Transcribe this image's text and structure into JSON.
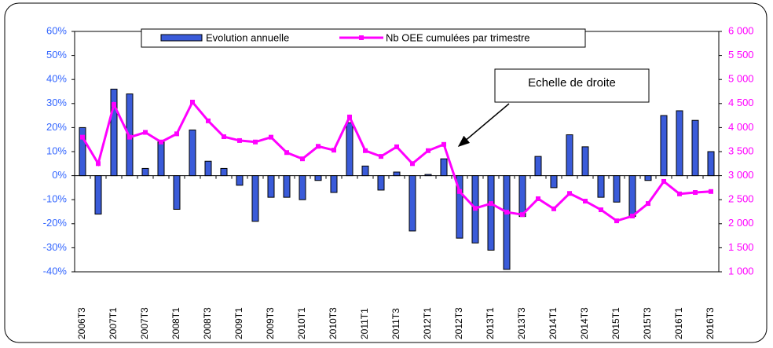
{
  "chart_data": {
    "type": "bar",
    "categories": [
      "2006T3",
      null,
      "2007T1",
      null,
      "2007T3",
      null,
      "2008T1",
      null,
      "2008T3",
      null,
      "2009T1",
      null,
      "2009T3",
      null,
      "2010T1",
      null,
      "2010T3",
      null,
      "2011T1",
      null,
      "2011T3",
      null,
      "2012T1",
      null,
      "2012T3",
      null,
      "2013T1",
      null,
      "2013T3",
      null,
      "2014T1",
      null,
      "2014T3",
      null,
      "2015T1",
      null,
      "2015T3",
      null,
      "2016T1",
      null,
      "2016T3"
    ],
    "series": [
      {
        "name": "Evolution annuelle",
        "type": "bar",
        "color": "#3a5bd9",
        "values": [
          20,
          -16,
          36,
          34,
          3,
          14,
          -14,
          19,
          6,
          3,
          -4,
          -19,
          -9,
          -9,
          -10,
          -2,
          -7,
          22,
          4,
          -6,
          1.5,
          -23,
          0.5,
          7,
          -26,
          -28,
          -31,
          -39,
          -17,
          8,
          -5,
          17,
          12,
          -9,
          -11,
          -17,
          -2,
          25,
          27,
          23,
          10
        ]
      },
      {
        "name": "Nb OEE cumulées par trimestre",
        "type": "line",
        "axis": "y2",
        "color": "#ff00ff",
        "values": [
          3800,
          3250,
          4480,
          3800,
          3900,
          3700,
          3870,
          4530,
          4140,
          3810,
          3730,
          3700,
          3800,
          3480,
          3350,
          3610,
          3530,
          4220,
          3520,
          3400,
          3600,
          3250,
          3520,
          3650,
          2670,
          2320,
          2420,
          2240,
          2190,
          2520,
          2310,
          2630,
          2470,
          2290,
          2060,
          2160,
          2420,
          2880,
          2620,
          2650,
          2670
        ]
      }
    ],
    "ylim": [
      -40,
      60
    ],
    "yticks": [
      {
        "value": -40,
        "label": "-40%"
      },
      {
        "value": -30,
        "label": "-30%"
      },
      {
        "value": -20,
        "label": "-20%"
      },
      {
        "value": -10,
        "label": "-10%"
      },
      {
        "value": 0,
        "label": "0%"
      },
      {
        "value": 10,
        "label": "10%"
      },
      {
        "value": 20,
        "label": "20%"
      },
      {
        "value": 30,
        "label": "30%"
      },
      {
        "value": 40,
        "label": "40%"
      },
      {
        "value": 50,
        "label": "50%"
      },
      {
        "value": 60,
        "label": "60%"
      }
    ],
    "y2lim": [
      1000,
      6000
    ],
    "y2ticks": [
      {
        "value": 1000,
        "label": "1 000"
      },
      {
        "value": 1500,
        "label": "1 500"
      },
      {
        "value": 2000,
        "label": "2 000"
      },
      {
        "value": 2500,
        "label": "2 500"
      },
      {
        "value": 3000,
        "label": "3 000"
      },
      {
        "value": 3500,
        "label": "3 500"
      },
      {
        "value": 4000,
        "label": "4 000"
      },
      {
        "value": 4500,
        "label": "4 500"
      },
      {
        "value": 5000,
        "label": "5 000"
      },
      {
        "value": 5500,
        "label": "5 500"
      },
      {
        "value": 6000,
        "label": "6 000"
      }
    ],
    "grid": false,
    "annotation": "Echelle de droite"
  }
}
